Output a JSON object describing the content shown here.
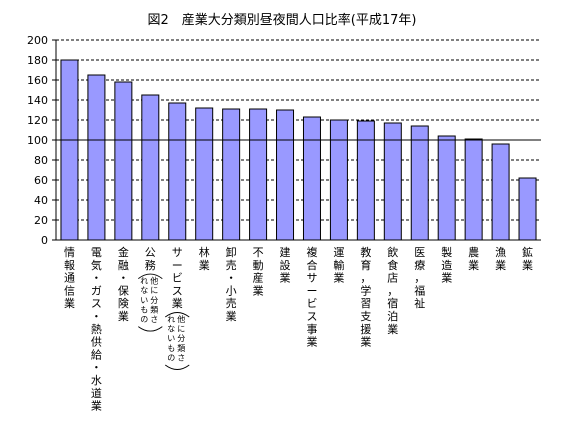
{
  "chart_data": {
    "type": "bar",
    "title": "図2　産業大分類別昼夜間人口比率(平成17年)",
    "xlabel": "",
    "ylabel": "",
    "ylim": [
      0,
      200
    ],
    "yticks": [
      0,
      20,
      40,
      60,
      80,
      100,
      120,
      140,
      160,
      180,
      200
    ],
    "grid": "dashed horizontal gridlines",
    "reference_line": 100,
    "bar_color": "#9999ff",
    "categories": [
      "情報通信業",
      "電気・ガス・熱供給・水道業",
      "金融・保険業",
      "公務(他に分類されないもの)",
      "サービス業(他に分類されないもの)",
      "林業",
      "卸売・小売業",
      "不動産業",
      "建設業",
      "複合サービス事業",
      "運輸業",
      "教育，学習支援業",
      "飲食店，宿泊業",
      "医療，福祉",
      "製造業",
      "農業",
      "漁業",
      "鉱業"
    ],
    "values": [
      180,
      165,
      158,
      145,
      137,
      132,
      131,
      131,
      130,
      123,
      120,
      119,
      117,
      114,
      104,
      101,
      96,
      62
    ]
  }
}
